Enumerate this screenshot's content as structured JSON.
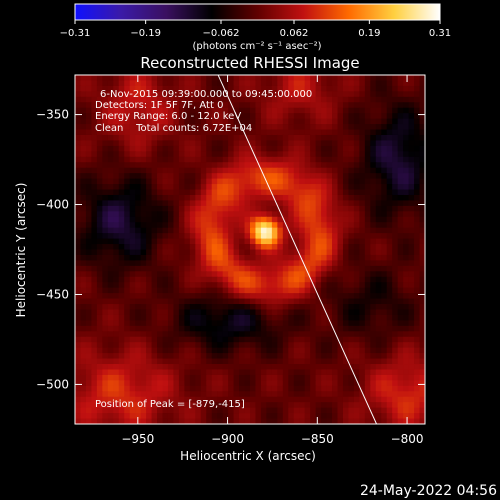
{
  "chart_data": {
    "type": "heatmap",
    "title": "Reconstructed RHESSI Image",
    "xlabel": "Heliocentric X (arcsec)",
    "ylabel": "Heliocentric Y (arcsec)",
    "xlim": [
      -985,
      -790
    ],
    "ylim": [
      -522,
      -328
    ],
    "x_ticks": [
      -950,
      -900,
      -850,
      -800
    ],
    "x_tick_labels": [
      "−950",
      "−900",
      "−850",
      "−800"
    ],
    "y_ticks": [
      -350,
      -400,
      -450,
      -500
    ],
    "y_tick_labels": [
      "−350",
      "−400",
      "−450",
      "−500"
    ],
    "colorbar": {
      "min": -0.31,
      "max": 0.31,
      "tick_values": [
        -0.31,
        -0.19,
        -0.062,
        0.062,
        0.19,
        0.31
      ],
      "tick_labels": [
        "−0.31",
        "−0.19",
        "−0.062",
        "0.062",
        "0.19",
        "0.31"
      ],
      "unit_label": "(photons cm⁻² s⁻¹ asec⁻²)",
      "stops": [
        "#1010ff",
        "#3a1aa8",
        "#3a1060",
        "#000000",
        "#600000",
        "#c01010",
        "#ff6a00",
        "#ffd040",
        "#ffffff"
      ]
    },
    "peak": {
      "x": -879,
      "y": -415,
      "value": 0.31
    },
    "limb_line": {
      "x1": -908,
      "y1": -322,
      "x2": -817,
      "y2": -522
    },
    "grid": false
  },
  "annotations": {
    "date_line": "6-Nov-2015 09:39:00.000 to 09:45:00.000",
    "detectors_line": "Detectors: 1F 5F 7F, Att 0",
    "energy_line": "Energy Range: 6.0 - 12.0 keV",
    "clean_line": "Clean    Total counts: 6.72E+04",
    "peak_line": "Position of Peak = [-879,-415]"
  },
  "timestamp": "24-May-2022 04:56",
  "colors": {
    "background": "#000000",
    "foreground": "#ffffff"
  }
}
